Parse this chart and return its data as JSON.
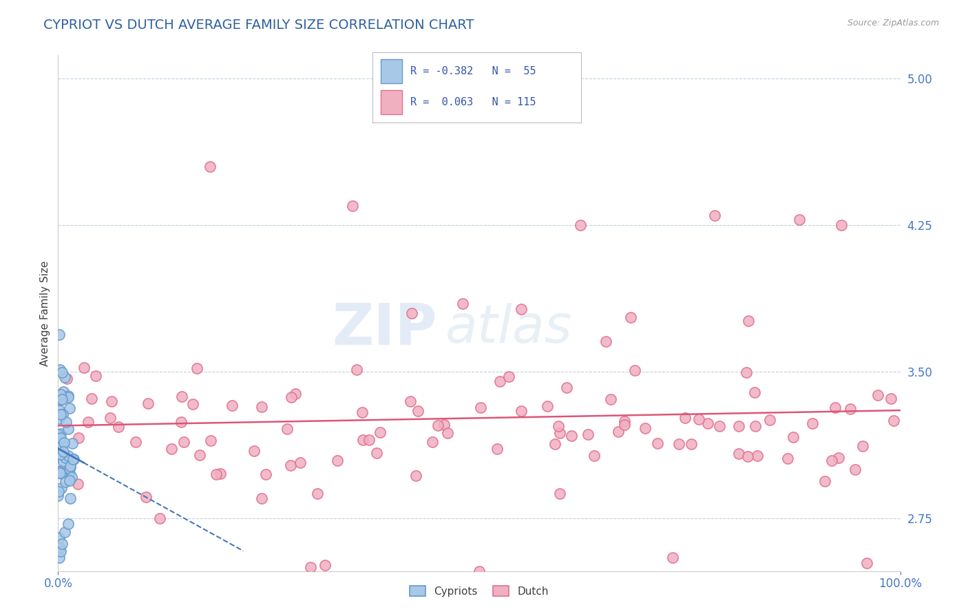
{
  "title": "CYPRIOT VS DUTCH AVERAGE FAMILY SIZE CORRELATION CHART",
  "source_text": "Source: ZipAtlas.com",
  "ylabel": "Average Family Size",
  "watermark_zip": "ZIP",
  "watermark_atlas": "atlas",
  "xlim": [
    0.0,
    100.0
  ],
  "ylim": [
    2.48,
    5.12
  ],
  "yticks": [
    2.75,
    3.5,
    4.25,
    5.0
  ],
  "xticks": [
    0.0,
    100.0
  ],
  "xticklabels": [
    "0.0%",
    "100.0%"
  ],
  "yticklabels": [
    "2.75",
    "3.50",
    "4.25",
    "5.00"
  ],
  "cypriot_R": -0.382,
  "cypriot_N": 55,
  "dutch_R": 0.063,
  "dutch_N": 115,
  "cypriot_dot_color": "#a8c8e8",
  "cypriot_edge_color": "#6699cc",
  "dutch_dot_color": "#f0b0c0",
  "dutch_edge_color": "#e07090",
  "cypriot_line_color": "#4477bb",
  "dutch_line_color": "#dd5577",
  "background_color": "#ffffff",
  "grid_color": "#c0d0e0",
  "title_color": "#3060a0",
  "axis_label_color": "#404040",
  "tick_label_color": "#4477cc",
  "title_fontsize": 14,
  "axis_label_fontsize": 11,
  "tick_fontsize": 12,
  "legend_label_color": "#3355aa"
}
